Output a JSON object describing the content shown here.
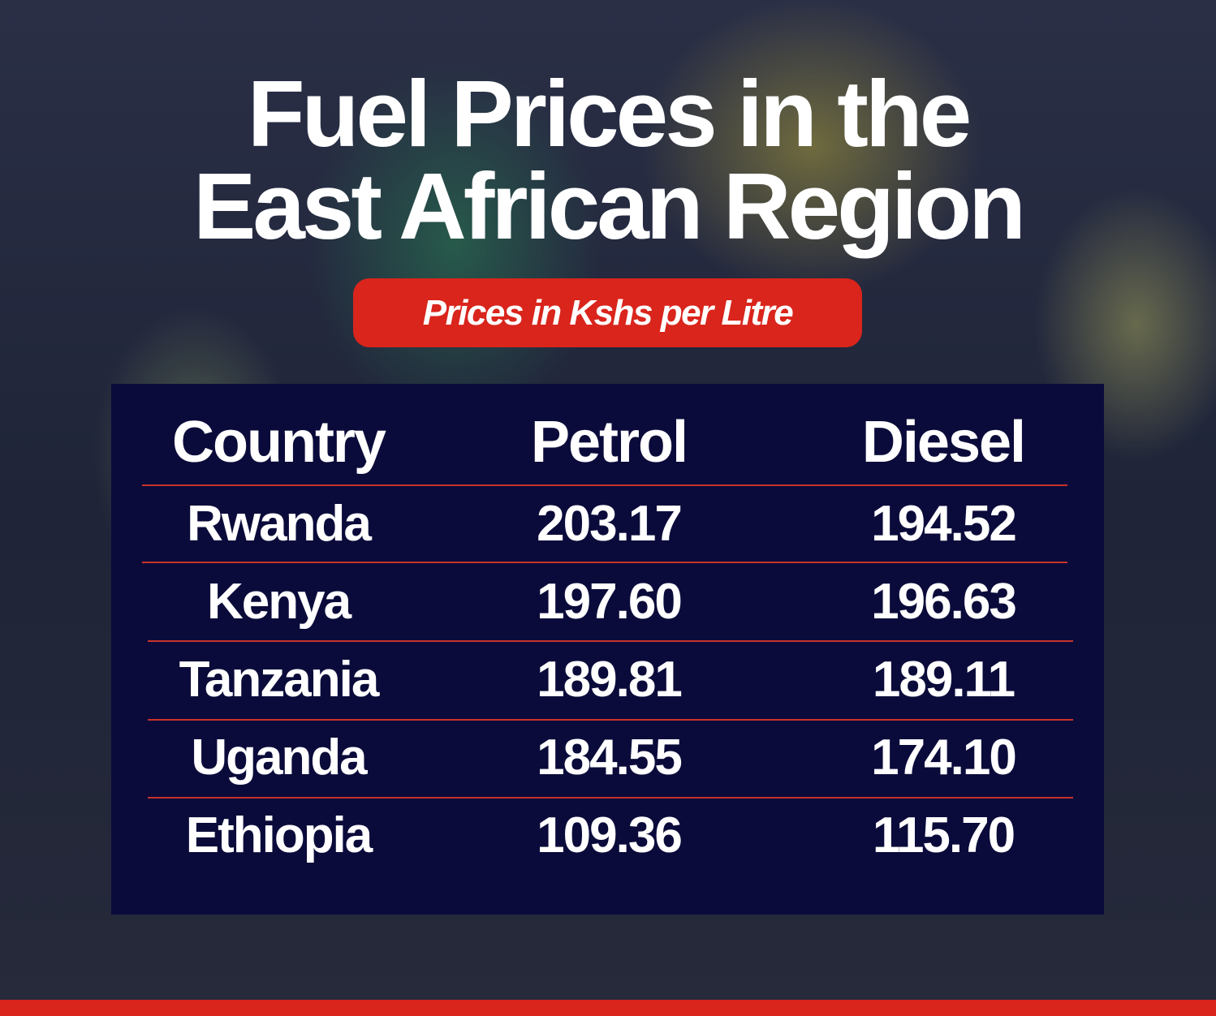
{
  "header": {
    "title_lines": [
      "Fuel Prices in the",
      "East African Region"
    ],
    "subtitle": "Prices in Kshs per Litre"
  },
  "table": {
    "columns": [
      "Country",
      "Petrol",
      "Diesel"
    ],
    "rows": [
      [
        "Rwanda",
        "203.17",
        "194.52"
      ],
      [
        "Kenya",
        "197.60",
        "196.63"
      ],
      [
        "Tanzania",
        "189.81",
        "189.11"
      ],
      [
        "Uganda",
        "184.55",
        "174.10"
      ],
      [
        "Ethiopia",
        "109.36",
        "115.70"
      ]
    ]
  }
}
